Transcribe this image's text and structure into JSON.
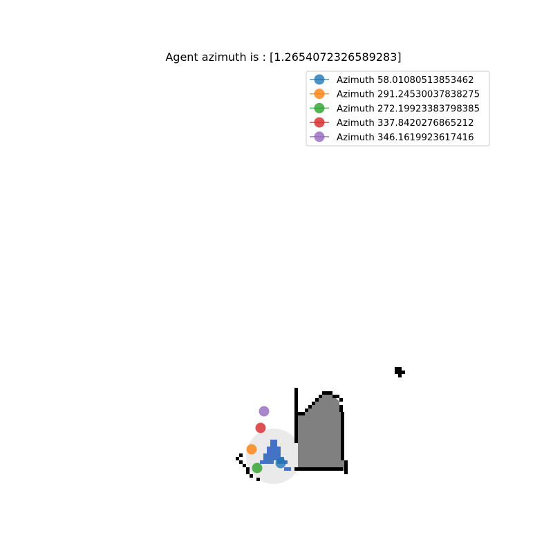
{
  "chart_data": {
    "type": "scatter",
    "title": "Agent azimuth is : [1.2654072326589283]",
    "xlabel": "",
    "ylabel": "",
    "axes_visible": false,
    "grid": false,
    "legend_placement": "top-right",
    "series": [
      {
        "name": "Azimuth 58.01080513853462",
        "color": "#1f77b4",
        "points": [
          [
            406,
            670
          ]
        ]
      },
      {
        "name": "Azimuth 291.24530037838275",
        "color": "#ff7f0e",
        "points": [
          [
            364,
            650
          ]
        ]
      },
      {
        "name": "Azimuth 272.19923383798385",
        "color": "#2ca02c",
        "points": [
          [
            372,
            677
          ]
        ]
      },
      {
        "name": "Azimuth 337.8420276865212",
        "color": "#d62728",
        "points": [
          [
            377,
            619
          ]
        ]
      },
      {
        "name": "Azimuth 346.1619923617416",
        "color": "#9467bd",
        "points": [
          [
            382,
            595
          ]
        ]
      }
    ]
  },
  "map": {
    "grid_cell_unit": 5,
    "colors": {
      "obstacle": "#000000",
      "explored": "#808080",
      "visible_area": "#eaeaea",
      "agent": "#4472c4"
    },
    "obstacle_cells": [
      [
        571,
        531
      ],
      [
        576,
        531
      ],
      [
        571,
        536
      ],
      [
        576,
        536
      ],
      [
        581,
        536
      ],
      [
        576,
        541
      ],
      [
        426,
        561
      ],
      [
        426,
        566
      ],
      [
        426,
        571
      ],
      [
        426,
        576
      ],
      [
        426,
        581
      ],
      [
        426,
        586
      ],
      [
        426,
        591
      ],
      [
        426,
        596
      ],
      [
        426,
        601
      ],
      [
        426,
        606
      ],
      [
        426,
        611
      ],
      [
        426,
        616
      ],
      [
        426,
        621
      ],
      [
        426,
        626
      ],
      [
        426,
        631
      ],
      [
        426,
        636
      ],
      [
        466,
        566
      ],
      [
        471,
        566
      ],
      [
        476,
        566
      ],
      [
        461,
        571
      ],
      [
        481,
        571
      ],
      [
        486,
        571
      ],
      [
        456,
        576
      ],
      [
        491,
        576
      ],
      [
        451,
        581
      ],
      [
        446,
        586
      ],
      [
        491,
        586
      ],
      [
        491,
        591
      ],
      [
        441,
        591
      ],
      [
        431,
        596
      ],
      [
        436,
        596
      ],
      [
        493,
        596
      ],
      [
        493,
        601
      ],
      [
        493,
        606
      ],
      [
        493,
        611
      ],
      [
        493,
        616
      ],
      [
        493,
        621
      ],
      [
        493,
        626
      ],
      [
        493,
        631
      ],
      [
        493,
        636
      ],
      [
        493,
        641
      ],
      [
        493,
        646
      ],
      [
        493,
        651
      ],
      [
        493,
        656
      ],
      [
        493,
        661
      ],
      [
        498,
        666
      ],
      [
        498,
        671
      ],
      [
        498,
        676
      ],
      [
        498,
        681
      ],
      [
        426,
        676
      ],
      [
        431,
        676
      ],
      [
        436,
        676
      ],
      [
        441,
        676
      ],
      [
        446,
        676
      ],
      [
        451,
        676
      ],
      [
        456,
        676
      ],
      [
        461,
        676
      ],
      [
        466,
        676
      ],
      [
        471,
        676
      ],
      [
        476,
        676
      ],
      [
        481,
        676
      ],
      [
        486,
        676
      ],
      [
        491,
        676
      ],
      [
        346,
        656
      ],
      [
        341,
        661
      ],
      [
        346,
        666
      ],
      [
        351,
        671
      ],
      [
        356,
        676
      ],
      [
        356,
        681
      ],
      [
        361,
        686
      ],
      [
        371,
        691
      ]
    ],
    "explored_polygon": [
      [
        431,
        601
      ],
      [
        436,
        601
      ],
      [
        441,
        596
      ],
      [
        446,
        591
      ],
      [
        451,
        586
      ],
      [
        456,
        581
      ],
      [
        461,
        576
      ],
      [
        466,
        571
      ],
      [
        481,
        571
      ],
      [
        486,
        576
      ],
      [
        491,
        581
      ],
      [
        491,
        596
      ],
      [
        493,
        596
      ],
      [
        493,
        666
      ],
      [
        498,
        666
      ],
      [
        498,
        681
      ],
      [
        493,
        681
      ],
      [
        493,
        676
      ],
      [
        431,
        676
      ]
    ],
    "visible_circle": {
      "cx": 396,
      "cy": 660,
      "r": 40
    },
    "agent_cells": [
      [
        391,
        636
      ],
      [
        396,
        636
      ],
      [
        391,
        641
      ],
      [
        396,
        641
      ],
      [
        386,
        646
      ],
      [
        391,
        646
      ],
      [
        396,
        646
      ],
      [
        401,
        646
      ],
      [
        386,
        651
      ],
      [
        391,
        651
      ],
      [
        396,
        651
      ],
      [
        401,
        651
      ],
      [
        381,
        656
      ],
      [
        386,
        656
      ],
      [
        391,
        656
      ],
      [
        396,
        656
      ],
      [
        401,
        656
      ],
      [
        381,
        661
      ],
      [
        386,
        661
      ],
      [
        391,
        661
      ],
      [
        396,
        661
      ],
      [
        401,
        661
      ],
      [
        406,
        661
      ],
      [
        376,
        666
      ],
      [
        381,
        666
      ],
      [
        386,
        666
      ],
      [
        391,
        666
      ],
      [
        401,
        666
      ],
      [
        406,
        666
      ],
      [
        411,
        666
      ],
      [
        411,
        676
      ],
      [
        416,
        676
      ]
    ]
  }
}
